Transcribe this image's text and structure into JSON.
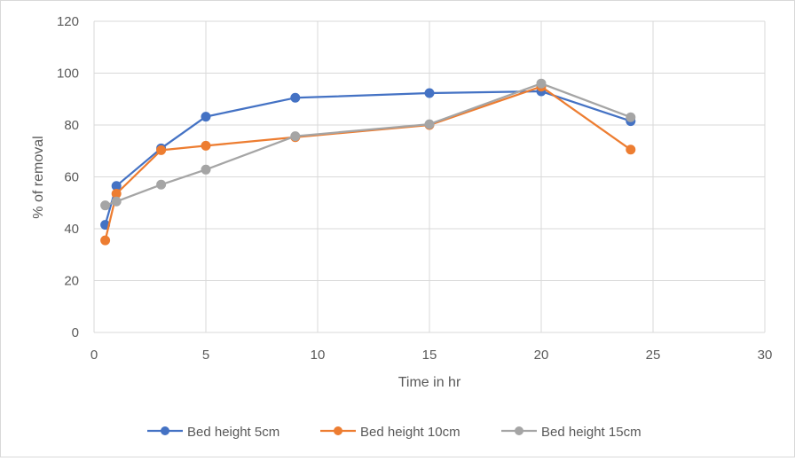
{
  "chart_data": {
    "type": "line",
    "title": "",
    "xlabel": "Time in hr",
    "ylabel": "% of removal",
    "xlim": [
      0,
      30
    ],
    "ylim": [
      0,
      120
    ],
    "x_ticks": [
      0,
      5,
      10,
      15,
      20,
      25,
      30
    ],
    "y_ticks": [
      0,
      20,
      40,
      60,
      80,
      100,
      120
    ],
    "grid": true,
    "legend_position": "bottom",
    "series": [
      {
        "name": "Bed height 5cm",
        "color": "#4472C4",
        "x": [
          0.5,
          1,
          3,
          5,
          9,
          15,
          20,
          24
        ],
        "y": [
          41.5,
          56.5,
          71,
          83.2,
          90.5,
          92.3,
          93,
          81.5
        ]
      },
      {
        "name": "Bed height 10cm",
        "color": "#ED7D31",
        "x": [
          0.5,
          1,
          3,
          5,
          9,
          15,
          20,
          24
        ],
        "y": [
          35.5,
          53.5,
          70.3,
          72,
          75.3,
          80,
          94.8,
          70.5
        ]
      },
      {
        "name": "Bed height 15cm",
        "color": "#A5A5A5",
        "x": [
          0.5,
          1,
          3,
          5,
          9,
          15,
          20,
          24
        ],
        "y": [
          49,
          50.5,
          57,
          62.8,
          75.7,
          80.3,
          96,
          83
        ]
      }
    ]
  }
}
